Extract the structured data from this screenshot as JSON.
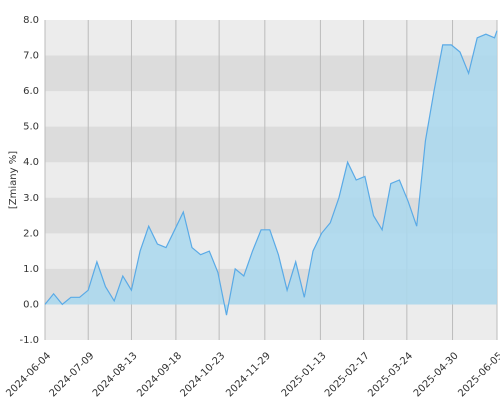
{
  "chart_data": {
    "type": "area",
    "y_label": "[Zmiany %]",
    "x": [
      "2024-06-04",
      "2024-06-11",
      "2024-06-18",
      "2024-06-25",
      "2024-07-02",
      "2024-07-09",
      "2024-07-16",
      "2024-07-23",
      "2024-07-30",
      "2024-08-06",
      "2024-08-13",
      "2024-08-20",
      "2024-08-27",
      "2024-09-03",
      "2024-09-10",
      "2024-09-17",
      "2024-09-24",
      "2024-10-01",
      "2024-10-08",
      "2024-10-15",
      "2024-10-22",
      "2024-10-29",
      "2024-11-05",
      "2024-11-12",
      "2024-11-19",
      "2024-11-26",
      "2024-12-03",
      "2024-12-10",
      "2024-12-17",
      "2024-12-24",
      "2024-12-31",
      "2025-01-07",
      "2025-01-14",
      "2025-01-21",
      "2025-01-28",
      "2025-02-04",
      "2025-02-11",
      "2025-02-18",
      "2025-02-25",
      "2025-03-04",
      "2025-03-11",
      "2025-03-18",
      "2025-03-25",
      "2025-04-01",
      "2025-04-08",
      "2025-04-15",
      "2025-04-22",
      "2025-04-29",
      "2025-05-06",
      "2025-05-13",
      "2025-05-20",
      "2025-05-27",
      "2025-06-03",
      "2025-06-05"
    ],
    "series": [
      {
        "color": "#5aaae6",
        "fill": "#a9d8ee",
        "values": [
          0.0,
          0.3,
          0.0,
          0.2,
          0.2,
          0.4,
          1.2,
          0.5,
          0.1,
          0.8,
          0.4,
          1.5,
          2.2,
          1.7,
          1.6,
          2.1,
          2.6,
          1.6,
          1.4,
          1.5,
          0.9,
          -0.3,
          1.0,
          0.8,
          1.5,
          2.1,
          2.1,
          1.4,
          0.4,
          1.2,
          0.2,
          1.5,
          2.0,
          2.3,
          3.0,
          4.0,
          3.5,
          3.6,
          2.5,
          2.1,
          3.4,
          3.5,
          2.9,
          2.2,
          4.6,
          6.0,
          7.3,
          7.3,
          7.1,
          6.5,
          7.5,
          7.6,
          7.5,
          7.7
        ]
      }
    ],
    "xlim": [
      "2024-06-04",
      "2025-06-05"
    ],
    "xticks": [
      "2024-06-04",
      "2024-07-09",
      "2024-08-13",
      "2024-09-18",
      "2024-10-23",
      "2024-11-29",
      "2025-01-13",
      "2025-02-17",
      "2025-03-24",
      "2025-04-30",
      "2025-06-05"
    ],
    "ylim": [
      -1,
      8
    ],
    "yticks": [
      {
        "value": -1,
        "label": "-1.0"
      },
      {
        "value": 0,
        "label": "0.0"
      },
      {
        "value": 1,
        "label": "1.0"
      },
      {
        "value": 2,
        "label": "2.0"
      },
      {
        "value": 3,
        "label": "3.0"
      },
      {
        "value": 4,
        "label": "4.0"
      },
      {
        "value": 5,
        "label": "5.0"
      },
      {
        "value": 6,
        "label": "6.0"
      },
      {
        "value": 7,
        "label": "7.0"
      },
      {
        "value": 8,
        "label": "8.0"
      }
    ],
    "grid": true
  }
}
